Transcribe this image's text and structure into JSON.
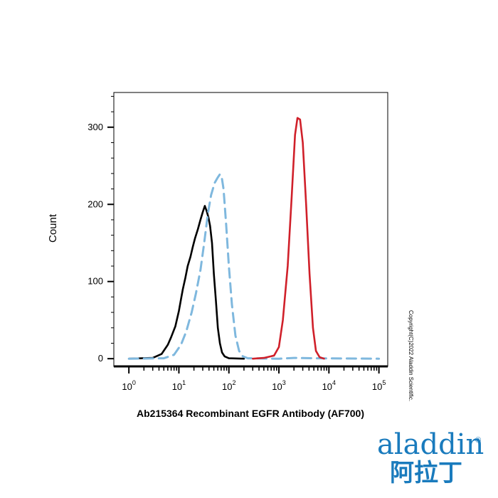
{
  "chart_data": {
    "type": "line",
    "xlabel": "Ab215364 Recombinant EGFR Antibody (AF700)",
    "ylabel": "Count",
    "xscale": "log",
    "xlim": [
      0.5,
      150000
    ],
    "ylim": [
      -10,
      345
    ],
    "yticks": [
      0,
      100,
      200,
      300
    ],
    "xtick_exponents": [
      "0",
      "1",
      "2",
      "3",
      "4",
      "5"
    ],
    "xtick_base": "10",
    "grid": false,
    "legend": "none",
    "series": [
      {
        "color": "#000000",
        "style": "solid",
        "points": [
          [
            1,
            0
          ],
          [
            3,
            1
          ],
          [
            4.5,
            6
          ],
          [
            6,
            18
          ],
          [
            7,
            28
          ],
          [
            8.5,
            42
          ],
          [
            10,
            62
          ],
          [
            11,
            77
          ],
          [
            12,
            90
          ],
          [
            13.5,
            105
          ],
          [
            15,
            120
          ],
          [
            17,
            132
          ],
          [
            19,
            145
          ],
          [
            21,
            156
          ],
          [
            24,
            168
          ],
          [
            27,
            180
          ],
          [
            30,
            190
          ],
          [
            33,
            198
          ],
          [
            36,
            191
          ],
          [
            39,
            183
          ],
          [
            42,
            172
          ],
          [
            46,
            150
          ],
          [
            50,
            110
          ],
          [
            55,
            75
          ],
          [
            60,
            40
          ],
          [
            66,
            20
          ],
          [
            73,
            8
          ],
          [
            82,
            3
          ],
          [
            100,
            0.5
          ],
          [
            200,
            0
          ]
        ]
      },
      {
        "color": "#7fb8de",
        "style": "dashed",
        "points": [
          [
            1,
            0
          ],
          [
            5,
            0.5
          ],
          [
            8,
            5
          ],
          [
            11,
            18
          ],
          [
            14,
            35
          ],
          [
            18,
            60
          ],
          [
            22,
            85
          ],
          [
            27,
            115
          ],
          [
            32,
            150
          ],
          [
            38,
            188
          ],
          [
            44,
            212
          ],
          [
            52,
            228
          ],
          [
            60,
            235
          ],
          [
            66,
            239
          ],
          [
            72,
            235
          ],
          [
            78,
            220
          ],
          [
            88,
            175
          ],
          [
            100,
            120
          ],
          [
            115,
            70
          ],
          [
            135,
            30
          ],
          [
            160,
            10
          ],
          [
            190,
            3
          ],
          [
            240,
            0.5
          ],
          [
            1000,
            0
          ],
          [
            2000,
            1
          ],
          [
            5000,
            0.5
          ],
          [
            100000,
            0
          ]
        ]
      },
      {
        "color": "#d0202a",
        "style": "solid",
        "points": [
          [
            300,
            0
          ],
          [
            500,
            1
          ],
          [
            800,
            4
          ],
          [
            1000,
            15
          ],
          [
            1200,
            50
          ],
          [
            1500,
            120
          ],
          [
            1800,
            210
          ],
          [
            2100,
            290
          ],
          [
            2350,
            312
          ],
          [
            2650,
            310
          ],
          [
            3000,
            280
          ],
          [
            3500,
            200
          ],
          [
            4100,
            110
          ],
          [
            4800,
            40
          ],
          [
            5500,
            10
          ],
          [
            6500,
            2
          ],
          [
            8000,
            0
          ]
        ]
      }
    ]
  },
  "copyright": "Copyright(C)2022 Aladdin Scientific.",
  "logo": {
    "text_en": "aladdin",
    "registered": "®",
    "text_zh": "阿拉丁"
  }
}
